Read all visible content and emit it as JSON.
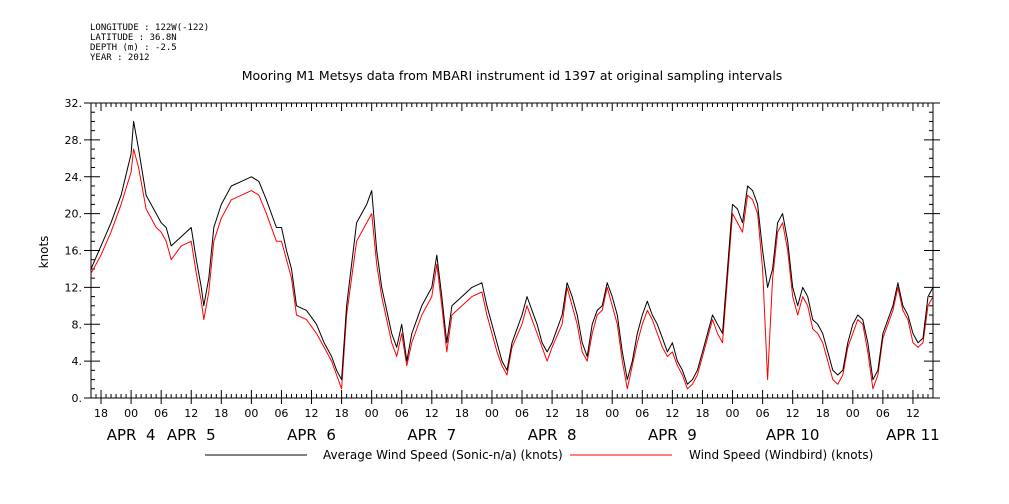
{
  "metadata": {
    "longitude": "LONGITUDE : 122W(-122)",
    "latitude": "LATITUDE : 36.8N",
    "depth": "DEPTH (m) : -2.5",
    "year": "YEAR : 2012"
  },
  "chart_data": {
    "type": "line",
    "title": "Mooring M1 Metsys data from MBARI instrument id 1397 at original sampling intervals",
    "ylabel": "knots",
    "xlabel": "",
    "ylim": [
      0,
      32
    ],
    "yticks": [
      0,
      4,
      8,
      12,
      16,
      20,
      24,
      28,
      32
    ],
    "ytick_labels": [
      "0.",
      "4.",
      "8.",
      "12.",
      "16.",
      "20.",
      "24.",
      "28.",
      "32."
    ],
    "xlim_hours": [
      -8,
      160
    ],
    "x_unit": "hours from APR 4 00:00 (2012)",
    "xticks": [
      {
        "label": "18",
        "hours": -6
      },
      {
        "label": "00",
        "hours": 0
      },
      {
        "label": "06",
        "hours": 6
      },
      {
        "label": "12",
        "hours": 12
      },
      {
        "label": "18",
        "hours": 18
      },
      {
        "label": "00",
        "hours": 24
      },
      {
        "label": "06",
        "hours": 30
      },
      {
        "label": "12",
        "hours": 36
      },
      {
        "label": "18",
        "hours": 42
      },
      {
        "label": "00",
        "hours": 48
      },
      {
        "label": "06",
        "hours": 54
      },
      {
        "label": "12",
        "hours": 60
      },
      {
        "label": "18",
        "hours": 66
      },
      {
        "label": "00",
        "hours": 72
      },
      {
        "label": "06",
        "hours": 78
      },
      {
        "label": "12",
        "hours": 84
      },
      {
        "label": "18",
        "hours": 90
      },
      {
        "label": "00",
        "hours": 96
      },
      {
        "label": "06",
        "hours": 102
      },
      {
        "label": "12",
        "hours": 108
      },
      {
        "label": "18",
        "hours": 114
      },
      {
        "label": "00",
        "hours": 120
      },
      {
        "label": "06",
        "hours": 126
      },
      {
        "label": "12",
        "hours": 132
      },
      {
        "label": "18",
        "hours": 138
      },
      {
        "label": "00",
        "hours": 144
      },
      {
        "label": "06",
        "hours": 150
      },
      {
        "label": "12",
        "hours": 156
      }
    ],
    "day_labels": [
      {
        "label": "APR  4",
        "hours": 0
      },
      {
        "label": "APR  5",
        "hours": 12
      },
      {
        "label": "APR  6",
        "hours": 36
      },
      {
        "label": "APR  7",
        "hours": 60
      },
      {
        "label": "APR  8",
        "hours": 84
      },
      {
        "label": "APR  9",
        "hours": 108
      },
      {
        "label": "APR 10",
        "hours": 132
      },
      {
        "label": "APR 11",
        "hours": 156
      }
    ],
    "grid": false,
    "legend_position": "bottom",
    "series": [
      {
        "name": "Average Wind Speed (Sonic-n/a) (knots)",
        "color": "#000000",
        "points": [
          [
            -8,
            14
          ],
          [
            -6,
            16.5
          ],
          [
            -4,
            19
          ],
          [
            -2,
            22
          ],
          [
            0,
            26.5
          ],
          [
            0.5,
            30
          ],
          [
            1.5,
            27
          ],
          [
            3,
            22
          ],
          [
            5,
            20
          ],
          [
            6,
            19
          ],
          [
            7,
            18.5
          ],
          [
            8,
            16.5
          ],
          [
            10,
            17.5
          ],
          [
            12,
            18.5
          ],
          [
            13,
            15
          ],
          [
            14,
            12
          ],
          [
            14.5,
            10
          ],
          [
            15.5,
            13
          ],
          [
            16.5,
            18.5
          ],
          [
            18,
            21
          ],
          [
            20,
            23
          ],
          [
            22,
            23.5
          ],
          [
            24,
            24
          ],
          [
            25.5,
            23.5
          ],
          [
            27,
            21.5
          ],
          [
            29,
            18.5
          ],
          [
            30,
            18.5
          ],
          [
            31,
            16
          ],
          [
            32,
            14
          ],
          [
            33,
            10
          ],
          [
            35,
            9.5
          ],
          [
            37,
            8
          ],
          [
            38.5,
            6
          ],
          [
            40,
            4.5
          ],
          [
            41,
            3
          ],
          [
            42,
            2
          ],
          [
            43,
            10
          ],
          [
            45,
            19
          ],
          [
            47,
            21
          ],
          [
            48,
            22.5
          ],
          [
            49,
            16
          ],
          [
            50,
            12
          ],
          [
            51,
            9.5
          ],
          [
            52,
            7
          ],
          [
            53,
            5.5
          ],
          [
            54,
            8
          ],
          [
            55,
            4
          ],
          [
            56,
            7
          ],
          [
            58,
            10
          ],
          [
            60,
            12
          ],
          [
            61,
            15.5
          ],
          [
            62,
            11
          ],
          [
            63,
            6
          ],
          [
            64,
            10
          ],
          [
            66,
            11
          ],
          [
            68,
            12
          ],
          [
            70,
            12.5
          ],
          [
            71,
            10
          ],
          [
            73,
            6
          ],
          [
            74,
            4
          ],
          [
            75,
            3
          ],
          [
            76,
            6
          ],
          [
            78,
            9
          ],
          [
            79,
            11
          ],
          [
            80,
            9.5
          ],
          [
            81,
            8
          ],
          [
            82,
            6
          ],
          [
            83,
            5
          ],
          [
            84,
            6
          ],
          [
            86,
            9
          ],
          [
            87,
            12.5
          ],
          [
            88,
            11
          ],
          [
            89,
            9
          ],
          [
            90,
            6
          ],
          [
            91,
            4.5
          ],
          [
            92,
            8
          ],
          [
            93,
            9.5
          ],
          [
            94,
            10
          ],
          [
            95,
            12.5
          ],
          [
            96,
            11
          ],
          [
            97,
            9
          ],
          [
            98,
            5
          ],
          [
            99,
            2
          ],
          [
            100,
            4
          ],
          [
            101,
            7
          ],
          [
            102,
            9
          ],
          [
            103,
            10.5
          ],
          [
            104,
            9
          ],
          [
            105,
            8
          ],
          [
            106,
            6.5
          ],
          [
            107,
            5
          ],
          [
            108,
            6
          ],
          [
            109,
            4
          ],
          [
            110,
            3
          ],
          [
            111,
            1.5
          ],
          [
            112,
            2
          ],
          [
            113,
            3
          ],
          [
            114,
            5
          ],
          [
            115,
            7
          ],
          [
            116,
            9
          ],
          [
            117,
            8
          ],
          [
            118,
            7
          ],
          [
            119,
            14
          ],
          [
            120,
            21
          ],
          [
            121,
            20.5
          ],
          [
            122,
            19
          ],
          [
            123,
            23
          ],
          [
            124,
            22.5
          ],
          [
            125,
            21
          ],
          [
            126,
            16
          ],
          [
            127,
            12
          ],
          [
            128,
            14
          ],
          [
            129,
            19
          ],
          [
            130,
            20
          ],
          [
            131,
            17
          ],
          [
            132,
            12
          ],
          [
            133,
            10
          ],
          [
            134,
            12
          ],
          [
            135,
            11
          ],
          [
            136,
            8.5
          ],
          [
            137,
            8
          ],
          [
            138,
            7
          ],
          [
            139,
            5
          ],
          [
            140,
            3
          ],
          [
            141,
            2.5
          ],
          [
            142,
            3
          ],
          [
            143,
            6
          ],
          [
            144,
            8
          ],
          [
            145,
            9
          ],
          [
            146,
            8.5
          ],
          [
            147,
            6
          ],
          [
            148,
            2
          ],
          [
            149,
            3
          ],
          [
            150,
            7
          ],
          [
            151,
            8.5
          ],
          [
            152,
            10
          ],
          [
            153,
            12.5
          ],
          [
            154,
            10
          ],
          [
            155,
            9
          ],
          [
            156,
            7
          ],
          [
            157,
            6
          ],
          [
            158,
            6.5
          ],
          [
            159,
            11
          ],
          [
            160,
            12
          ]
        ]
      },
      {
        "name": "Wind Speed (Windbird) (knots)",
        "color": "#ff0000",
        "points": [
          [
            -8,
            13.5
          ],
          [
            -6,
            15.5
          ],
          [
            -4,
            18
          ],
          [
            -2,
            21
          ],
          [
            0,
            24.5
          ],
          [
            0.5,
            27
          ],
          [
            1.5,
            25
          ],
          [
            3,
            20.5
          ],
          [
            5,
            18.5
          ],
          [
            6,
            18
          ],
          [
            7,
            17
          ],
          [
            8,
            15
          ],
          [
            10,
            16.5
          ],
          [
            12,
            17
          ],
          [
            13,
            13.5
          ],
          [
            14,
            10.5
          ],
          [
            14.5,
            8.5
          ],
          [
            15.5,
            11.5
          ],
          [
            16.5,
            17
          ],
          [
            18,
            19.5
          ],
          [
            20,
            21.5
          ],
          [
            22,
            22
          ],
          [
            24,
            22.5
          ],
          [
            25.5,
            22
          ],
          [
            27,
            20
          ],
          [
            29,
            17
          ],
          [
            30,
            17
          ],
          [
            31,
            15
          ],
          [
            32,
            13
          ],
          [
            33,
            9
          ],
          [
            35,
            8.5
          ],
          [
            37,
            7
          ],
          [
            38.5,
            5.5
          ],
          [
            40,
            4
          ],
          [
            41,
            2.5
          ],
          [
            42,
            1
          ],
          [
            43,
            9
          ],
          [
            45,
            17
          ],
          [
            47,
            19
          ],
          [
            48,
            20
          ],
          [
            49,
            14.5
          ],
          [
            50,
            11
          ],
          [
            51,
            8.5
          ],
          [
            52,
            6
          ],
          [
            53,
            4.5
          ],
          [
            54,
            7
          ],
          [
            55,
            3.5
          ],
          [
            56,
            6
          ],
          [
            58,
            9
          ],
          [
            60,
            11
          ],
          [
            61,
            14.5
          ],
          [
            62,
            10
          ],
          [
            63,
            5
          ],
          [
            64,
            9
          ],
          [
            66,
            10
          ],
          [
            68,
            11
          ],
          [
            70,
            11.5
          ],
          [
            71,
            9
          ],
          [
            73,
            5
          ],
          [
            74,
            3.5
          ],
          [
            75,
            2.5
          ],
          [
            76,
            5.5
          ],
          [
            78,
            8
          ],
          [
            79,
            10
          ],
          [
            80,
            8.5
          ],
          [
            81,
            7
          ],
          [
            82,
            5.5
          ],
          [
            83,
            4
          ],
          [
            84,
            5.5
          ],
          [
            86,
            8
          ],
          [
            87,
            12
          ],
          [
            88,
            10
          ],
          [
            89,
            8
          ],
          [
            90,
            5
          ],
          [
            91,
            4
          ],
          [
            92,
            7
          ],
          [
            93,
            9
          ],
          [
            94,
            9.5
          ],
          [
            95,
            12
          ],
          [
            96,
            10
          ],
          [
            97,
            8
          ],
          [
            98,
            4
          ],
          [
            99,
            1
          ],
          [
            100,
            3.5
          ],
          [
            101,
            6
          ],
          [
            102,
            8
          ],
          [
            103,
            9.5
          ],
          [
            104,
            8.5
          ],
          [
            105,
            7
          ],
          [
            106,
            5.5
          ],
          [
            107,
            4.5
          ],
          [
            108,
            5
          ],
          [
            109,
            3.5
          ],
          [
            110,
            2.5
          ],
          [
            111,
            1
          ],
          [
            112,
            1.5
          ],
          [
            113,
            2.5
          ],
          [
            114,
            4.5
          ],
          [
            115,
            6.5
          ],
          [
            116,
            8.5
          ],
          [
            117,
            7
          ],
          [
            118,
            6
          ],
          [
            119,
            13
          ],
          [
            120,
            20
          ],
          [
            121,
            19
          ],
          [
            122,
            18
          ],
          [
            123,
            22
          ],
          [
            124,
            21.5
          ],
          [
            125,
            20
          ],
          [
            126,
            14
          ],
          [
            127,
            2
          ],
          [
            128,
            13
          ],
          [
            129,
            18
          ],
          [
            130,
            19
          ],
          [
            131,
            16
          ],
          [
            132,
            11
          ],
          [
            133,
            9
          ],
          [
            134,
            11
          ],
          [
            135,
            10
          ],
          [
            136,
            7.5
          ],
          [
            137,
            7
          ],
          [
            138,
            6
          ],
          [
            139,
            4
          ],
          [
            140,
            2
          ],
          [
            141,
            1.5
          ],
          [
            142,
            2.5
          ],
          [
            143,
            5.5
          ],
          [
            144,
            7
          ],
          [
            145,
            8.5
          ],
          [
            146,
            8
          ],
          [
            147,
            5
          ],
          [
            148,
            1
          ],
          [
            149,
            2.5
          ],
          [
            150,
            6.5
          ],
          [
            151,
            8
          ],
          [
            152,
            9.5
          ],
          [
            153,
            12
          ],
          [
            154,
            9.5
          ],
          [
            155,
            8.5
          ],
          [
            156,
            6
          ],
          [
            157,
            5.5
          ],
          [
            158,
            6
          ],
          [
            159,
            10
          ],
          [
            160,
            11
          ]
        ]
      }
    ]
  }
}
